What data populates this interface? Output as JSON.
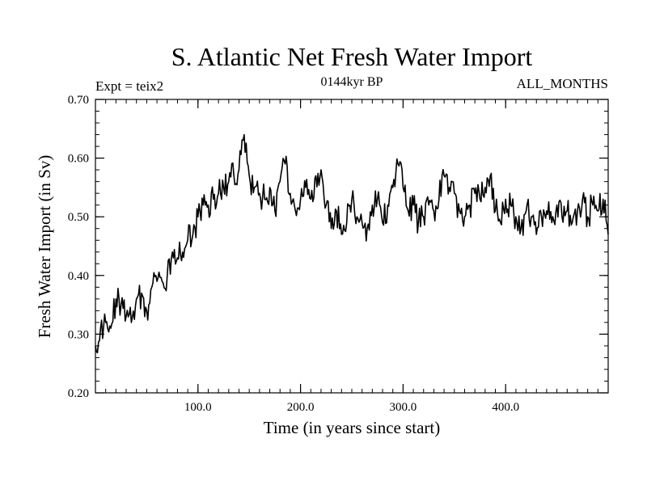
{
  "chart_data": {
    "type": "line",
    "title": "S. Atlantic Net Fresh Water Import",
    "subtitle_left": "Expt = teix2",
    "subtitle_center": "0144kyr BP",
    "subtitle_right": "ALL_MONTHS",
    "xlabel": "Time (in years since start)",
    "ylabel": "Fresh Water Import (in Sv)",
    "xlim": [
      0,
      500
    ],
    "ylim": [
      0.2,
      0.7
    ],
    "x_tick_values": [
      100,
      200,
      300,
      400
    ],
    "x_tick_labels": [
      "100.0",
      "200.0",
      "300.0",
      "400.0"
    ],
    "y_tick_values": [
      0.2,
      0.3,
      0.4,
      0.5,
      0.6,
      0.7
    ],
    "y_tick_labels": [
      "0.20",
      "0.30",
      "0.40",
      "0.50",
      "0.60",
      "0.70"
    ],
    "grid": false,
    "series": [
      {
        "x": [
          0,
          5,
          10,
          15,
          20,
          25,
          30,
          35,
          40,
          45,
          50,
          55,
          60,
          65,
          70,
          75,
          80,
          85,
          90,
          95,
          100,
          105,
          110,
          115,
          120,
          125,
          130,
          135,
          140,
          145,
          150,
          155,
          160,
          165,
          170,
          175,
          180,
          185,
          190,
          195,
          200,
          205,
          210,
          215,
          220,
          225,
          230,
          235,
          240,
          245,
          250,
          255,
          260,
          265,
          270,
          275,
          280,
          285,
          290,
          295,
          300,
          305,
          310,
          315,
          320,
          325,
          330,
          335,
          340,
          345,
          350,
          355,
          360,
          365,
          370,
          375,
          380,
          385,
          390,
          395,
          400,
          405,
          410,
          415,
          420,
          425,
          430,
          435,
          440,
          445,
          450,
          455,
          460,
          465,
          470,
          475,
          480,
          485,
          490,
          495,
          500
        ],
        "y": [
          0.28,
          0.31,
          0.32,
          0.31,
          0.36,
          0.35,
          0.33,
          0.32,
          0.36,
          0.37,
          0.34,
          0.38,
          0.39,
          0.39,
          0.4,
          0.44,
          0.43,
          0.44,
          0.46,
          0.47,
          0.5,
          0.52,
          0.52,
          0.53,
          0.54,
          0.55,
          0.56,
          0.57,
          0.58,
          0.64,
          0.57,
          0.55,
          0.54,
          0.53,
          0.55,
          0.51,
          0.56,
          0.59,
          0.54,
          0.51,
          0.53,
          0.55,
          0.53,
          0.57,
          0.58,
          0.52,
          0.48,
          0.51,
          0.47,
          0.49,
          0.53,
          0.5,
          0.49,
          0.48,
          0.52,
          0.53,
          0.49,
          0.52,
          0.55,
          0.59,
          0.55,
          0.51,
          0.52,
          0.49,
          0.5,
          0.52,
          0.51,
          0.53,
          0.57,
          0.55,
          0.54,
          0.51,
          0.5,
          0.52,
          0.54,
          0.53,
          0.55,
          0.57,
          0.51,
          0.49,
          0.53,
          0.52,
          0.5,
          0.48,
          0.51,
          0.5,
          0.47,
          0.5,
          0.51,
          0.49,
          0.52,
          0.5,
          0.51,
          0.49,
          0.51,
          0.53,
          0.5,
          0.52,
          0.51,
          0.53,
          0.47
        ]
      }
    ]
  }
}
